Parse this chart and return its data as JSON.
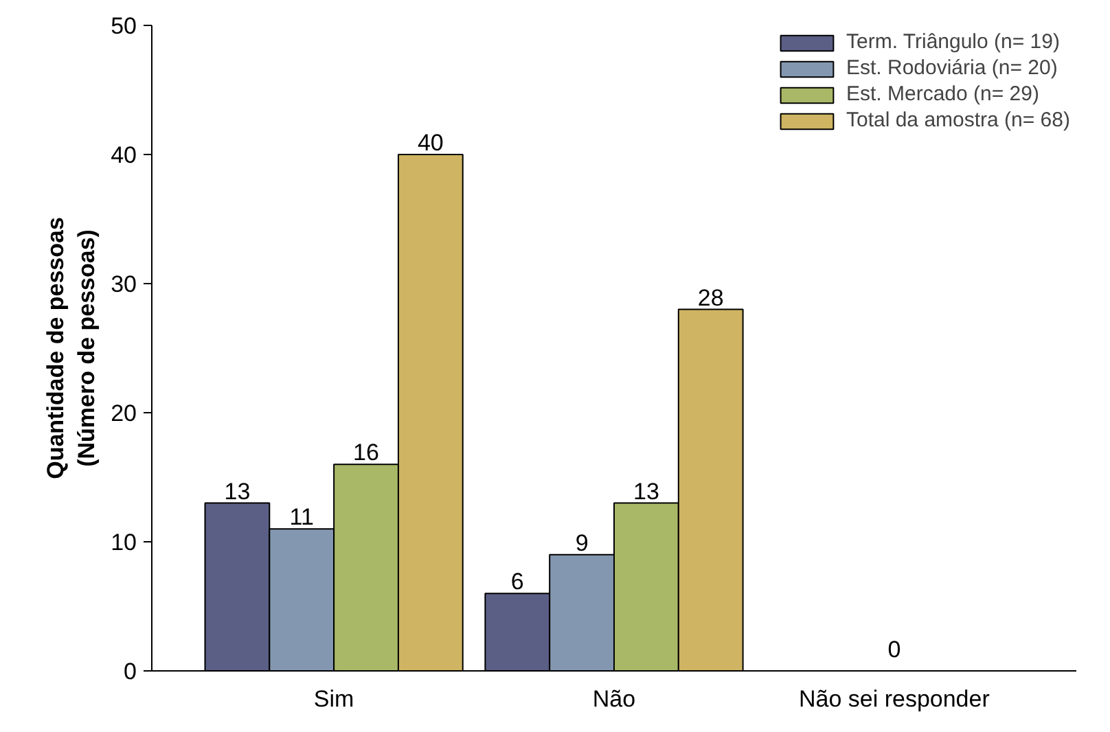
{
  "chart_data": {
    "type": "bar",
    "ylabel": "Quantidade de pessoas\n(Número de pessoas)",
    "categories": [
      "Sim",
      "Não",
      "Não sei responder"
    ],
    "series": [
      {
        "name": "Term. Triângulo (n= 19)",
        "color": "#5b5f86",
        "values": [
          13,
          6,
          0
        ],
        "value_labels": [
          "13",
          "6",
          null
        ]
      },
      {
        "name": "Est. Rodoviária (n= 20)",
        "color": "#8497b0",
        "values": [
          11,
          9,
          0
        ],
        "value_labels": [
          "11",
          "9",
          null
        ]
      },
      {
        "name": "Est. Mercado (n= 29)",
        "color": "#a9b866",
        "values": [
          16,
          13,
          0
        ],
        "value_labels": [
          "16",
          "13",
          null
        ]
      },
      {
        "name": "Total da amostra (n= 68)",
        "color": "#ceb463",
        "values": [
          40,
          28,
          0
        ],
        "value_labels": [
          "40",
          "28",
          null
        ]
      }
    ],
    "annotations": [
      {
        "text": "0",
        "x": "Não sei responder",
        "y": 0
      }
    ],
    "ylim": [
      0,
      50
    ],
    "yticks": [
      0,
      10,
      20,
      30,
      40,
      50
    ],
    "grid": false,
    "legend": "top right"
  }
}
